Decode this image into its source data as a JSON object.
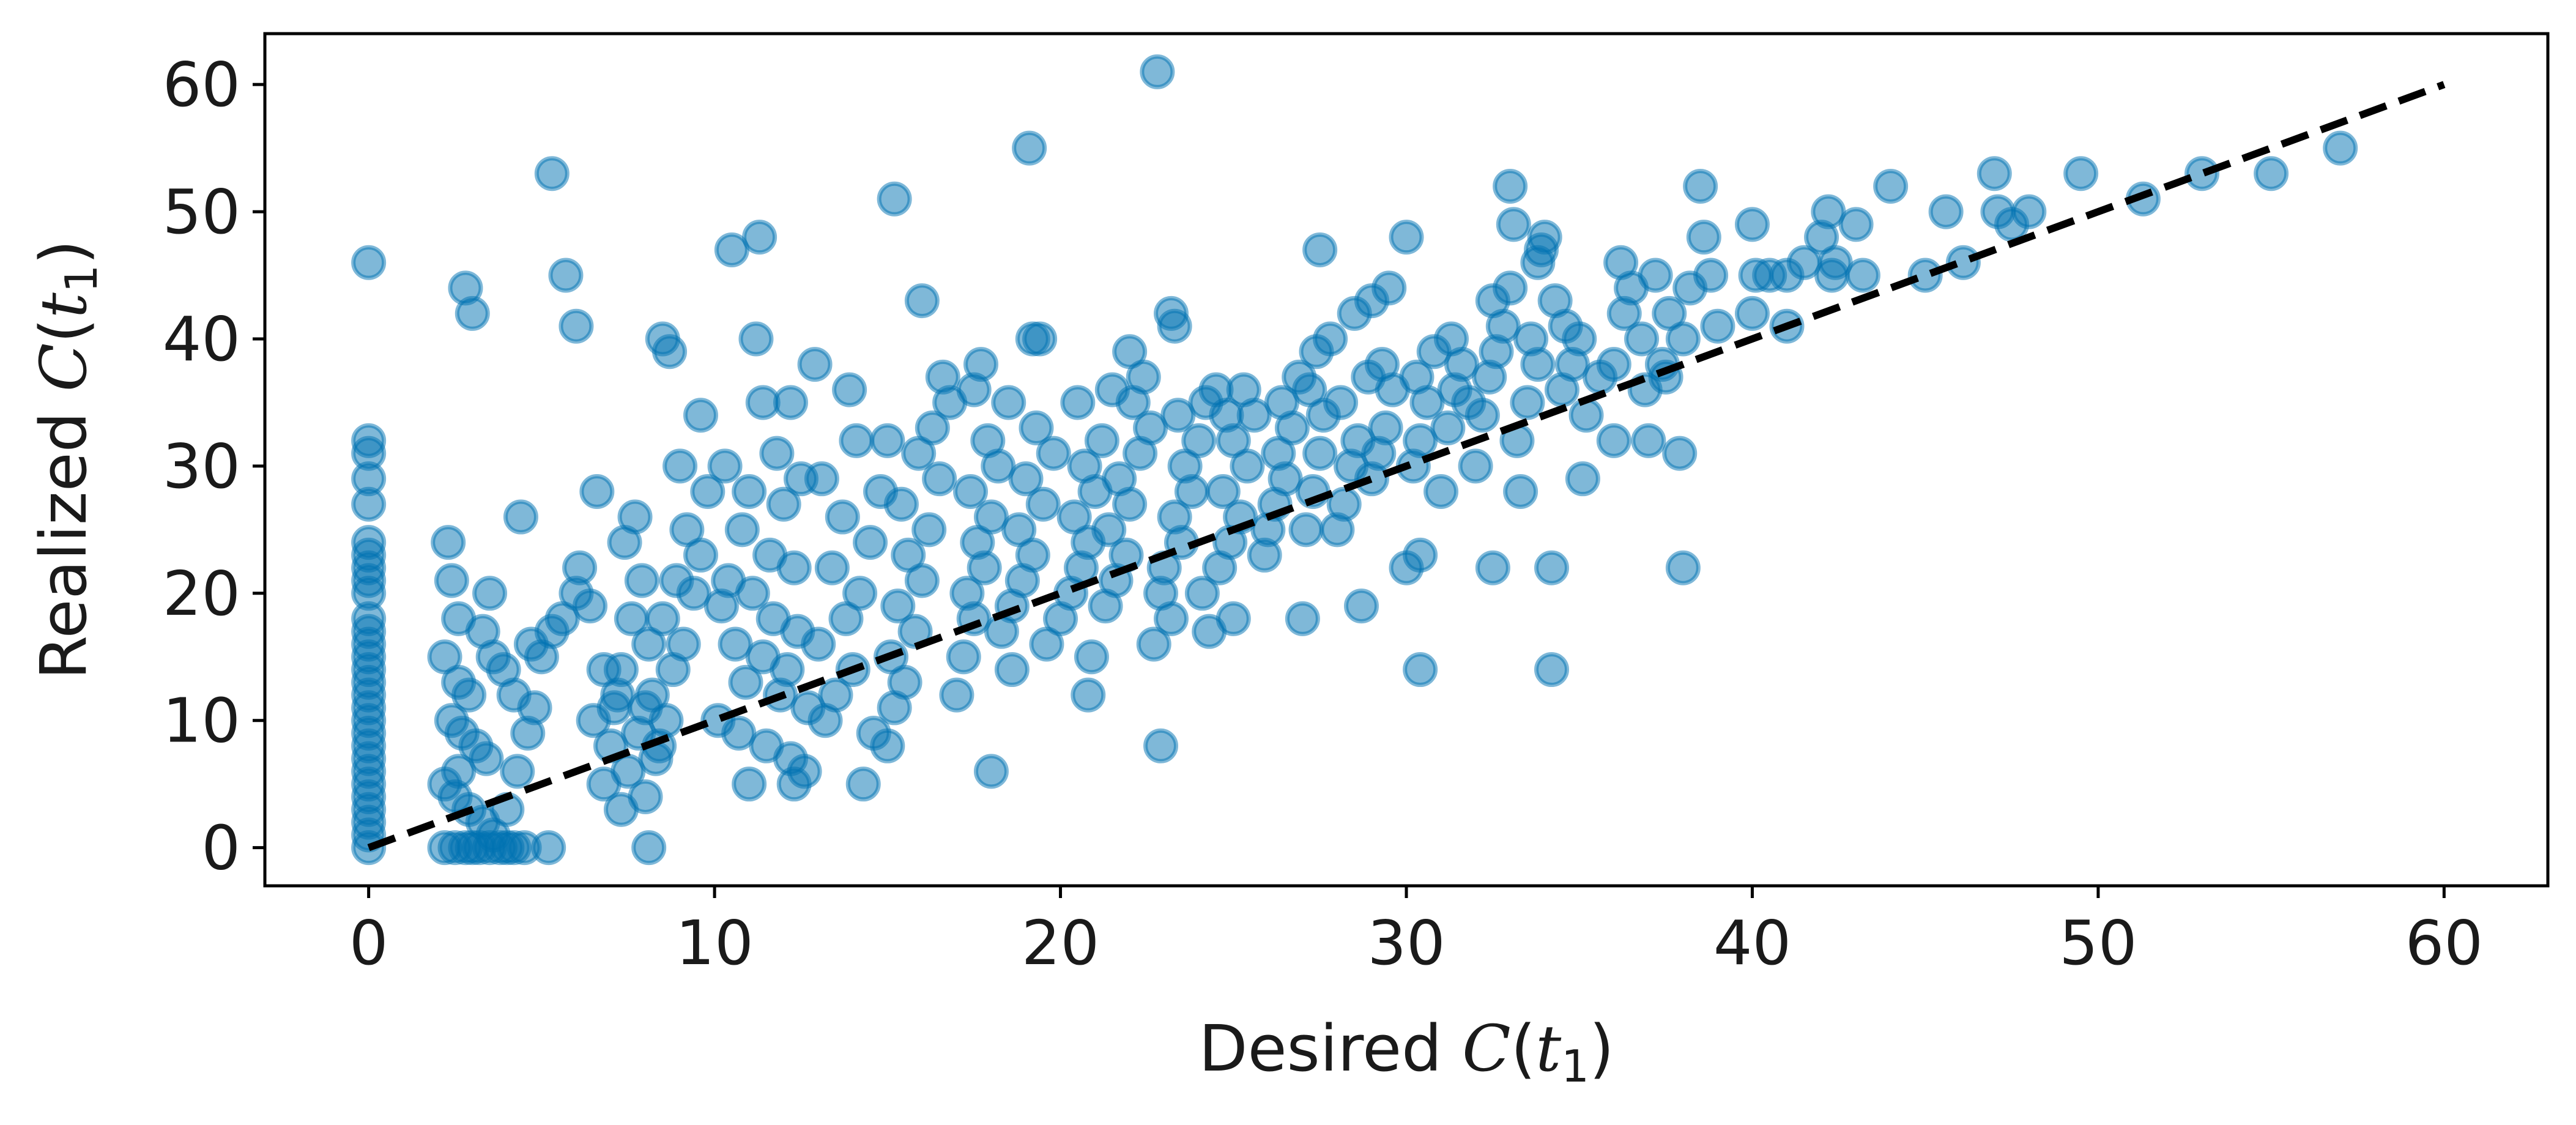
{
  "chart_data": {
    "type": "scatter",
    "xlabel": "Desired C(t1)",
    "ylabel": "Realized C(t1)",
    "xlim": [
      -3,
      63
    ],
    "ylim": [
      -3,
      64
    ],
    "xticks": [
      "0",
      "10",
      "20",
      "30",
      "40",
      "50",
      "60"
    ],
    "yticks": [
      "0",
      "10",
      "20",
      "30",
      "40",
      "50",
      "60"
    ],
    "grid": false,
    "legend": "none",
    "point_color": "#0072B2",
    "point_alpha": 0.5,
    "reference_line": {
      "style": "dashed",
      "color": "#000000",
      "x": [
        0,
        60
      ],
      "y": [
        0,
        60
      ]
    },
    "points": [
      [
        0,
        0
      ],
      [
        0,
        1
      ],
      [
        0,
        2
      ],
      [
        0,
        3
      ],
      [
        0,
        4
      ],
      [
        0,
        5
      ],
      [
        0,
        6
      ],
      [
        0,
        7
      ],
      [
        0,
        8
      ],
      [
        0,
        9
      ],
      [
        0,
        10
      ],
      [
        0,
        11
      ],
      [
        0,
        12
      ],
      [
        0,
        13
      ],
      [
        0,
        14
      ],
      [
        0,
        15
      ],
      [
        0,
        16
      ],
      [
        0,
        17
      ],
      [
        0,
        18
      ],
      [
        0,
        20
      ],
      [
        0,
        21
      ],
      [
        0,
        22
      ],
      [
        0,
        23
      ],
      [
        0,
        24
      ],
      [
        0,
        27
      ],
      [
        0,
        29
      ],
      [
        0,
        31
      ],
      [
        0,
        32
      ],
      [
        0,
        46
      ],
      [
        2.2,
        0
      ],
      [
        2.5,
        0
      ],
      [
        2.8,
        0
      ],
      [
        3.0,
        0
      ],
      [
        3.2,
        0
      ],
      [
        3.5,
        0
      ],
      [
        3.8,
        0
      ],
      [
        4.0,
        0
      ],
      [
        4.2,
        0
      ],
      [
        4.5,
        0
      ],
      [
        5.2,
        0
      ],
      [
        8.1,
        0
      ],
      [
        2.3,
        24
      ],
      [
        2.4,
        21
      ],
      [
        2.6,
        18
      ],
      [
        2.8,
        44
      ],
      [
        3.0,
        42
      ],
      [
        3.3,
        17
      ],
      [
        3.6,
        15
      ],
      [
        3.5,
        20
      ],
      [
        2.2,
        15
      ],
      [
        2.6,
        13
      ],
      [
        2.9,
        12
      ],
      [
        2.4,
        10
      ],
      [
        2.7,
        9
      ],
      [
        3.1,
        8
      ],
      [
        3.4,
        7
      ],
      [
        2.6,
        6
      ],
      [
        2.2,
        5
      ],
      [
        2.5,
        4
      ],
      [
        2.9,
        3
      ],
      [
        3.3,
        2
      ],
      [
        3.6,
        1
      ],
      [
        4.0,
        3
      ],
      [
        4.3,
        6
      ],
      [
        4.6,
        9
      ],
      [
        4.2,
        12
      ],
      [
        3.9,
        14
      ],
      [
        4.8,
        11
      ],
      [
        5.0,
        15
      ],
      [
        5.3,
        17
      ],
      [
        4.7,
        16
      ],
      [
        5.6,
        18
      ],
      [
        6.0,
        20
      ],
      [
        5.3,
        53
      ],
      [
        5.7,
        45
      ],
      [
        6.0,
        41
      ],
      [
        4.4,
        26
      ],
      [
        6.6,
        28
      ],
      [
        6.1,
        22
      ],
      [
        6.4,
        19
      ],
      [
        6.8,
        14
      ],
      [
        7.2,
        12
      ],
      [
        6.5,
        10
      ],
      [
        7.0,
        8
      ],
      [
        7.5,
        6
      ],
      [
        6.8,
        5
      ],
      [
        7.3,
        3
      ],
      [
        8.0,
        4
      ],
      [
        8.3,
        7
      ],
      [
        8.6,
        10
      ],
      [
        8.2,
        12
      ],
      [
        8.8,
        14
      ],
      [
        9.1,
        16
      ],
      [
        8.5,
        18
      ],
      [
        9.4,
        20
      ],
      [
        8.9,
        21
      ],
      [
        9.6,
        23
      ],
      [
        9.2,
        25
      ],
      [
        9.8,
        28
      ],
      [
        9.0,
        30
      ],
      [
        8.7,
        39
      ],
      [
        8.5,
        40
      ],
      [
        9.6,
        34
      ],
      [
        7.7,
        26
      ],
      [
        7.4,
        24
      ],
      [
        7.9,
        21
      ],
      [
        7.6,
        18
      ],
      [
        8.1,
        16
      ],
      [
        7.3,
        14
      ],
      [
        7.1,
        11
      ],
      [
        7.8,
        9
      ],
      [
        8.4,
        8
      ],
      [
        8.0,
        11
      ],
      [
        10.5,
        47
      ],
      [
        11.3,
        48
      ],
      [
        11.2,
        40
      ],
      [
        11.4,
        35
      ],
      [
        12.2,
        35
      ],
      [
        10.3,
        30
      ],
      [
        11.0,
        28
      ],
      [
        11.8,
        31
      ],
      [
        12.5,
        29
      ],
      [
        12.0,
        27
      ],
      [
        10.8,
        25
      ],
      [
        11.6,
        23
      ],
      [
        12.3,
        22
      ],
      [
        10.4,
        21
      ],
      [
        11.1,
        20
      ],
      [
        10.2,
        19
      ],
      [
        11.7,
        18
      ],
      [
        12.4,
        17
      ],
      [
        10.6,
        16
      ],
      [
        11.4,
        15
      ],
      [
        12.1,
        14
      ],
      [
        10.9,
        13
      ],
      [
        11.9,
        12
      ],
      [
        12.7,
        11
      ],
      [
        10.1,
        10
      ],
      [
        10.7,
        9
      ],
      [
        11.5,
        8
      ],
      [
        12.2,
        7
      ],
      [
        12.6,
        6
      ],
      [
        11.0,
        5
      ],
      [
        12.3,
        5
      ],
      [
        13.2,
        10
      ],
      [
        13.5,
        12
      ],
      [
        14.0,
        14
      ],
      [
        13.0,
        16
      ],
      [
        13.8,
        18
      ],
      [
        14.2,
        20
      ],
      [
        13.4,
        22
      ],
      [
        14.5,
        24
      ],
      [
        13.7,
        26
      ],
      [
        14.8,
        28
      ],
      [
        13.1,
        29
      ],
      [
        14.1,
        32
      ],
      [
        13.9,
        36
      ],
      [
        12.9,
        38
      ],
      [
        14.3,
        5
      ],
      [
        14.6,
        9
      ],
      [
        15.0,
        8
      ],
      [
        15.2,
        11
      ],
      [
        15.5,
        13
      ],
      [
        15.1,
        15
      ],
      [
        15.8,
        17
      ],
      [
        15.3,
        19
      ],
      [
        16.0,
        21
      ],
      [
        15.6,
        23
      ],
      [
        16.2,
        25
      ],
      [
        15.4,
        27
      ],
      [
        16.5,
        29
      ],
      [
        15.9,
        31
      ],
      [
        16.3,
        33
      ],
      [
        15.0,
        32
      ],
      [
        15.2,
        51
      ],
      [
        16.0,
        43
      ],
      [
        16.6,
        37
      ],
      [
        16.8,
        35
      ],
      [
        17.0,
        12
      ],
      [
        17.2,
        15
      ],
      [
        17.5,
        18
      ],
      [
        17.3,
        20
      ],
      [
        17.8,
        22
      ],
      [
        17.6,
        24
      ],
      [
        18.0,
        26
      ],
      [
        17.4,
        28
      ],
      [
        18.2,
        30
      ],
      [
        17.9,
        32
      ],
      [
        18.5,
        35
      ],
      [
        17.5,
        36
      ],
      [
        17.7,
        38
      ],
      [
        18.0,
        6
      ],
      [
        18.3,
        17
      ],
      [
        18.6,
        19
      ],
      [
        18.9,
        21
      ],
      [
        19.2,
        23
      ],
      [
        18.8,
        25
      ],
      [
        19.5,
        27
      ],
      [
        19.0,
        29
      ],
      [
        19.8,
        31
      ],
      [
        19.3,
        33
      ],
      [
        18.6,
        14
      ],
      [
        19.6,
        16
      ],
      [
        20.0,
        18
      ],
      [
        20.3,
        20
      ],
      [
        19.1,
        55
      ],
      [
        19.2,
        40
      ],
      [
        19.4,
        40
      ],
      [
        20.6,
        22
      ],
      [
        20.8,
        24
      ],
      [
        20.4,
        26
      ],
      [
        21.0,
        28
      ],
      [
        20.7,
        30
      ],
      [
        21.2,
        32
      ],
      [
        20.5,
        35
      ],
      [
        21.5,
        36
      ],
      [
        20.9,
        15
      ],
      [
        21.3,
        19
      ],
      [
        20.8,
        12
      ],
      [
        21.6,
        21
      ],
      [
        21.9,
        23
      ],
      [
        21.4,
        25
      ],
      [
        22.0,
        27
      ],
      [
        21.7,
        29
      ],
      [
        22.3,
        31
      ],
      [
        22.6,
        33
      ],
      [
        22.1,
        35
      ],
      [
        22.4,
        37
      ],
      [
        22.0,
        39
      ],
      [
        22.7,
        16
      ],
      [
        22.9,
        20
      ],
      [
        22.8,
        61
      ],
      [
        22.9,
        8
      ],
      [
        23.2,
        18
      ],
      [
        23.0,
        22
      ],
      [
        23.5,
        24
      ],
      [
        23.3,
        26
      ],
      [
        23.8,
        28
      ],
      [
        23.6,
        30
      ],
      [
        24.0,
        32
      ],
      [
        23.4,
        34
      ],
      [
        24.2,
        35
      ],
      [
        23.2,
        42
      ],
      [
        23.3,
        41
      ],
      [
        24.5,
        36
      ],
      [
        24.8,
        34
      ],
      [
        24.3,
        17
      ],
      [
        24.1,
        20
      ],
      [
        24.6,
        22
      ],
      [
        24.9,
        24
      ],
      [
        25.2,
        26
      ],
      [
        24.7,
        28
      ],
      [
        25.4,
        30
      ],
      [
        25.0,
        32
      ],
      [
        25.6,
        34
      ],
      [
        25.3,
        36
      ],
      [
        25.0,
        18
      ],
      [
        25.9,
        23
      ],
      [
        26.0,
        25
      ],
      [
        26.2,
        27
      ],
      [
        26.5,
        29
      ],
      [
        26.3,
        31
      ],
      [
        26.7,
        33
      ],
      [
        26.4,
        35
      ],
      [
        26.9,
        37
      ],
      [
        27.0,
        18
      ],
      [
        27.1,
        25
      ],
      [
        27.3,
        28
      ],
      [
        27.5,
        31
      ],
      [
        27.6,
        34
      ],
      [
        27.2,
        36
      ],
      [
        27.4,
        39
      ],
      [
        27.5,
        47
      ],
      [
        27.8,
        40
      ],
      [
        28.0,
        25
      ],
      [
        28.2,
        27
      ],
      [
        28.4,
        30
      ],
      [
        28.6,
        32
      ],
      [
        28.1,
        35
      ],
      [
        28.9,
        37
      ],
      [
        28.5,
        42
      ],
      [
        28.7,
        19
      ],
      [
        29.0,
        29
      ],
      [
        29.2,
        31
      ],
      [
        29.4,
        33
      ],
      [
        29.6,
        36
      ],
      [
        29.3,
        38
      ],
      [
        29.0,
        43
      ],
      [
        29.5,
        44
      ],
      [
        30.0,
        22
      ],
      [
        30.0,
        48
      ],
      [
        30.2,
        30
      ],
      [
        30.4,
        32
      ],
      [
        30.6,
        35
      ],
      [
        30.3,
        37
      ],
      [
        30.8,
        39
      ],
      [
        30.4,
        14
      ],
      [
        30.4,
        23
      ],
      [
        31.0,
        28
      ],
      [
        31.2,
        33
      ],
      [
        31.4,
        36
      ],
      [
        31.6,
        38
      ],
      [
        31.3,
        40
      ],
      [
        31.8,
        35
      ],
      [
        32.0,
        30
      ],
      [
        32.2,
        34
      ],
      [
        32.4,
        37
      ],
      [
        32.6,
        39
      ],
      [
        32.8,
        41
      ],
      [
        32.5,
        43
      ],
      [
        32.5,
        22
      ],
      [
        33.0,
        44
      ],
      [
        33.0,
        52
      ],
      [
        33.1,
        49
      ],
      [
        33.2,
        32
      ],
      [
        33.5,
        35
      ],
      [
        33.8,
        38
      ],
      [
        33.6,
        40
      ],
      [
        33.3,
        28
      ],
      [
        33.8,
        46
      ],
      [
        33.9,
        47
      ],
      [
        34.0,
        48
      ],
      [
        34.2,
        22
      ],
      [
        34.2,
        14
      ],
      [
        34.5,
        36
      ],
      [
        34.8,
        38
      ],
      [
        34.6,
        41
      ],
      [
        34.3,
        43
      ],
      [
        35.0,
        40
      ],
      [
        35.1,
        29
      ],
      [
        35.2,
        34
      ],
      [
        35.6,
        37
      ],
      [
        36.0,
        38
      ],
      [
        36.3,
        42
      ],
      [
        36.0,
        32
      ],
      [
        36.2,
        46
      ],
      [
        36.5,
        44
      ],
      [
        36.8,
        40
      ],
      [
        36.9,
        36
      ],
      [
        37.0,
        32
      ],
      [
        37.2,
        45
      ],
      [
        37.4,
        38
      ],
      [
        37.6,
        42
      ],
      [
        37.5,
        37
      ],
      [
        37.9,
        31
      ],
      [
        38.0,
        22
      ],
      [
        38.0,
        40
      ],
      [
        38.2,
        44
      ],
      [
        38.5,
        52
      ],
      [
        38.6,
        48
      ],
      [
        38.8,
        45
      ],
      [
        39.0,
        41
      ],
      [
        40.0,
        49
      ],
      [
        40.1,
        45
      ],
      [
        40.0,
        42
      ],
      [
        40.5,
        45
      ],
      [
        41.0,
        41
      ],
      [
        41.0,
        45
      ],
      [
        41.5,
        46
      ],
      [
        42.0,
        48
      ],
      [
        42.2,
        50
      ],
      [
        42.4,
        46
      ],
      [
        42.3,
        45
      ],
      [
        43.0,
        49
      ],
      [
        43.2,
        45
      ],
      [
        44.0,
        52
      ],
      [
        45.0,
        45
      ],
      [
        45.6,
        50
      ],
      [
        46.1,
        46
      ],
      [
        47.0,
        53
      ],
      [
        47.1,
        50
      ],
      [
        47.5,
        49
      ],
      [
        48.0,
        50
      ],
      [
        49.5,
        53
      ],
      [
        51.3,
        51
      ],
      [
        53.0,
        53
      ],
      [
        55.0,
        53
      ],
      [
        57.0,
        55
      ]
    ]
  }
}
